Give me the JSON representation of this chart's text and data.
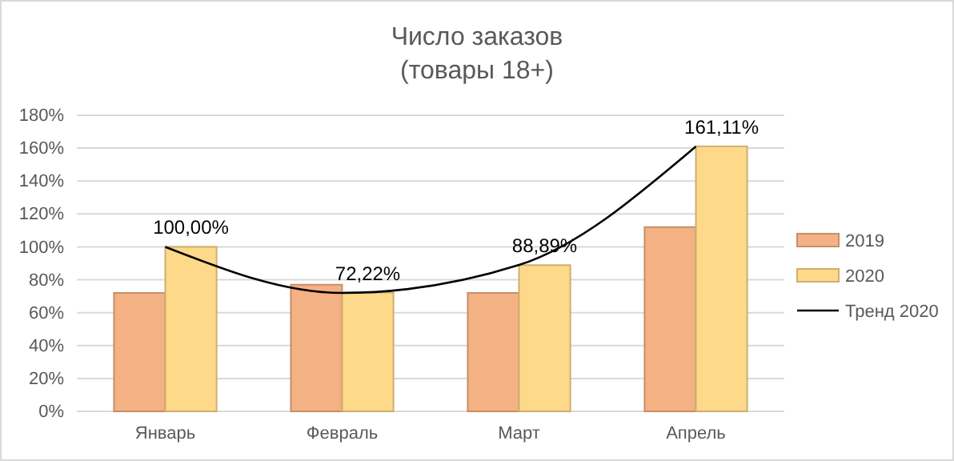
{
  "chart_data": {
    "type": "bar",
    "title": "Число заказов\n(товары 18+)",
    "categories": [
      "Январь",
      "Февраль",
      "Март",
      "Апрель"
    ],
    "series": [
      {
        "name": "2019",
        "color": "#f4b183",
        "values": [
          72,
          77,
          72,
          112
        ]
      },
      {
        "name": "2020",
        "color": "#ffd98a",
        "values": [
          100,
          72.22,
          88.89,
          161.11
        ],
        "value_labels": [
          "100,00%",
          "72,22%",
          "88,89%",
          "161,11%"
        ]
      },
      {
        "name": "Тренд 2020",
        "type": "line",
        "color": "#000000",
        "values": [
          100,
          72,
          89,
          161
        ],
        "marker": "none",
        "line_style": "solid"
      }
    ],
    "ylim": [
      0,
      180
    ],
    "yticks": [
      {
        "value": 0,
        "label": "0%"
      },
      {
        "value": 20,
        "label": "20%"
      },
      {
        "value": 40,
        "label": "40%"
      },
      {
        "value": 60,
        "label": "60%"
      },
      {
        "value": 80,
        "label": "80%"
      },
      {
        "value": 100,
        "label": "100%"
      },
      {
        "value": 120,
        "label": "120%"
      },
      {
        "value": 140,
        "label": "140%"
      },
      {
        "value": 160,
        "label": "160%"
      },
      {
        "value": 180,
        "label": "180%"
      }
    ],
    "grid": "y",
    "legend": "right"
  }
}
